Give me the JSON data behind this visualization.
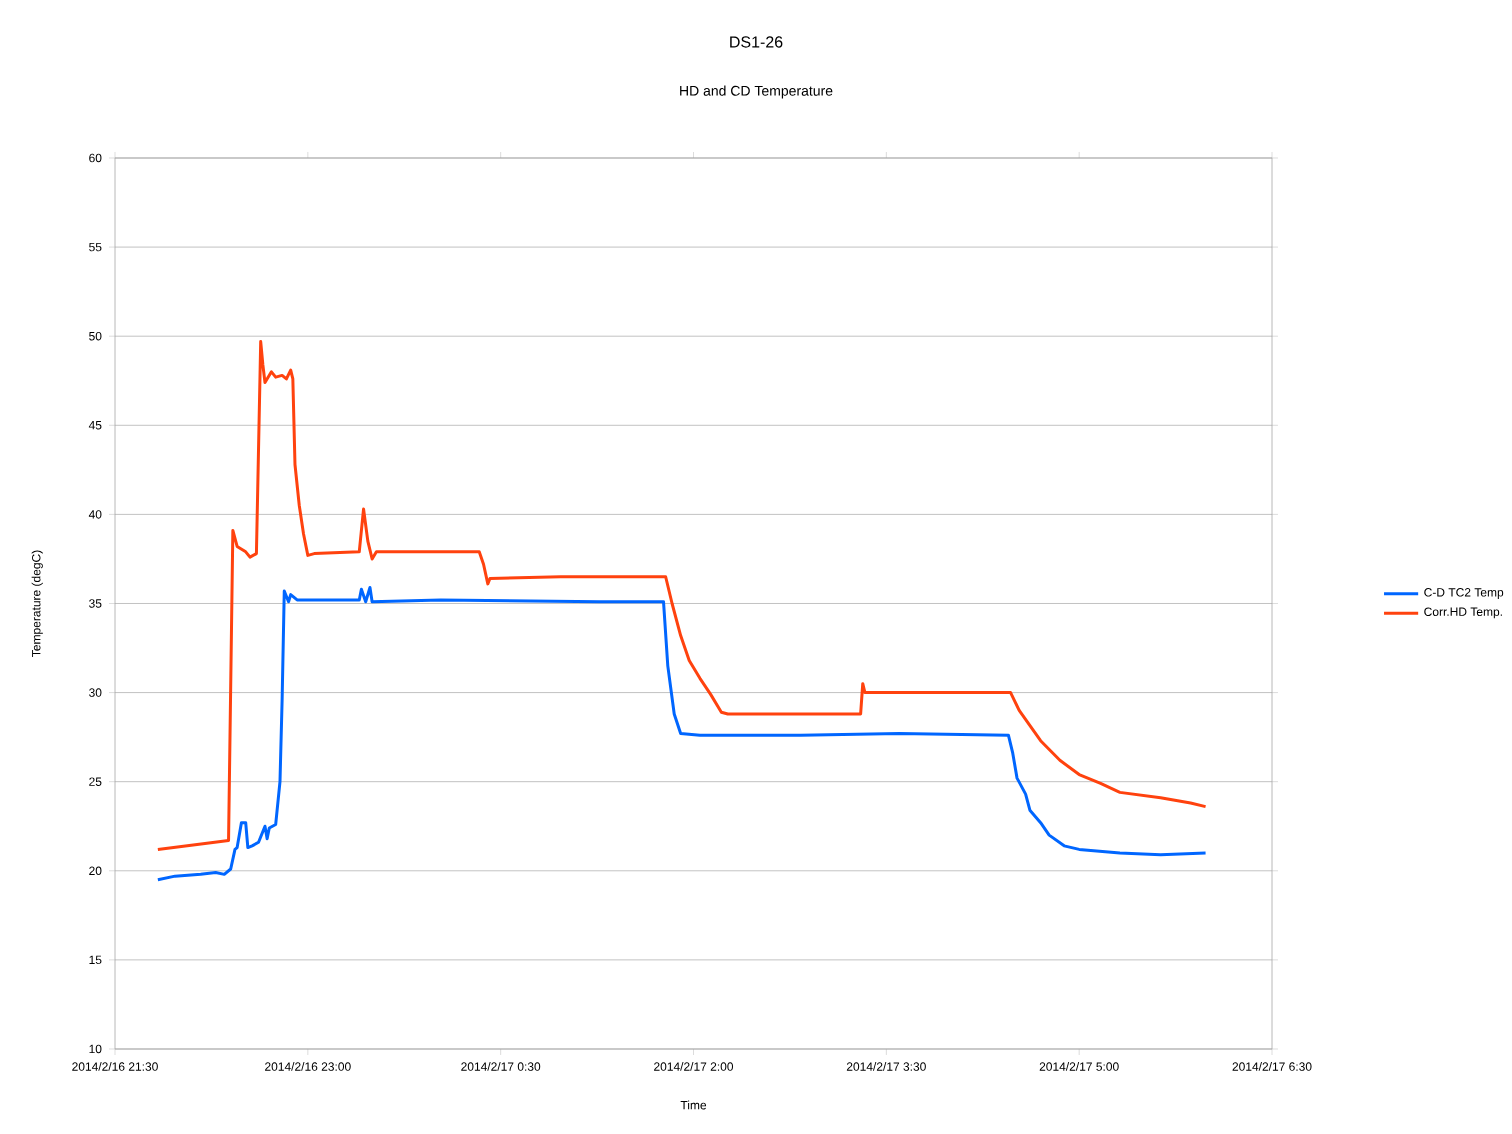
{
  "chart_data": {
    "type": "line",
    "title": "DS1-26",
    "subtitle": "HD and CD Temperature",
    "xlabel": "Time",
    "ylabel": "Temperature (degC)",
    "xlim": [
      "2014-02-16T21:30",
      "2014-02-17T06:30"
    ],
    "xticks": [
      {
        "value": "2014-02-16T21:30",
        "label": "2014/2/16 21:30"
      },
      {
        "value": "2014-02-16T23:00",
        "label": "2014/2/16 23:00"
      },
      {
        "value": "2014-02-17T00:30",
        "label": "2014/2/17 0:30"
      },
      {
        "value": "2014-02-17T02:00",
        "label": "2014/2/17 2:00"
      },
      {
        "value": "2014-02-17T03:30",
        "label": "2014/2/17 3:30"
      },
      {
        "value": "2014-02-17T05:00",
        "label": "2014/2/17 5:00"
      },
      {
        "value": "2014-02-17T06:30",
        "label": "2014/2/17 6:30"
      }
    ],
    "ylim": [
      10,
      60
    ],
    "yticks": [
      10,
      15,
      20,
      25,
      30,
      35,
      40,
      45,
      50,
      55,
      60
    ],
    "grid": "y",
    "legend": "right",
    "marker": "none",
    "line_style": "solid",
    "series": [
      {
        "name": "C-D TC2 Temp",
        "color": "#0066ff",
        "x": [
          "2014-02-16T21:50",
          "2014-02-16T21:58",
          "2014-02-16T22:10",
          "2014-02-16T22:17",
          "2014-02-16T22:21",
          "2014-02-16T22:24",
          "2014-02-16T22:26",
          "2014-02-16T22:27",
          "2014-02-16T22:29",
          "2014-02-16T22:31",
          "2014-02-16T22:32",
          "2014-02-16T22:34",
          "2014-02-16T22:37",
          "2014-02-16T22:40",
          "2014-02-16T22:41",
          "2014-02-16T22:42",
          "2014-02-16T22:45",
          "2014-02-16T22:47",
          "2014-02-16T22:48",
          "2014-02-16T22:49",
          "2014-02-16T22:51",
          "2014-02-16T22:52",
          "2014-02-16T22:55",
          "2014-02-16T23:24",
          "2014-02-16T23:25",
          "2014-02-16T23:27",
          "2014-02-16T23:29",
          "2014-02-16T23:30",
          "2014-02-17T00:02",
          "2014-02-17T01:16",
          "2014-02-17T01:46",
          "2014-02-17T01:48",
          "2014-02-17T01:51",
          "2014-02-17T01:54",
          "2014-02-17T02:03",
          "2014-02-17T02:50",
          "2014-02-17T03:36",
          "2014-02-17T04:27",
          "2014-02-17T04:29",
          "2014-02-17T04:31",
          "2014-02-17T04:35",
          "2014-02-17T04:37",
          "2014-02-17T04:42",
          "2014-02-17T04:46",
          "2014-02-17T04:53",
          "2014-02-17T05:00",
          "2014-02-17T05:19",
          "2014-02-17T05:38",
          "2014-02-17T05:59"
        ],
        "values": [
          19.5,
          19.7,
          19.8,
          19.9,
          19.8,
          20.1,
          21.2,
          21.3,
          22.7,
          22.7,
          21.3,
          21.4,
          21.6,
          22.5,
          21.8,
          22.4,
          22.6,
          25.0,
          29.6,
          35.7,
          35.1,
          35.5,
          35.2,
          35.2,
          35.8,
          35.1,
          35.9,
          35.1,
          35.2,
          35.1,
          35.1,
          31.5,
          28.8,
          27.7,
          27.6,
          27.6,
          27.7,
          27.6,
          26.6,
          25.2,
          24.3,
          23.4,
          22.7,
          22.0,
          21.4,
          21.2,
          21.0,
          20.9,
          21.0
        ]
      },
      {
        "name": "Corr.HD Temp.",
        "color": "#ff420e",
        "x": [
          "2014-02-16T21:50",
          "2014-02-16T22:23",
          "2014-02-16T22:25",
          "2014-02-16T22:27",
          "2014-02-16T22:31",
          "2014-02-16T22:33",
          "2014-02-16T22:36",
          "2014-02-16T22:38",
          "2014-02-16T22:39",
          "2014-02-16T22:40",
          "2014-02-16T22:43",
          "2014-02-16T22:45",
          "2014-02-16T22:48",
          "2014-02-16T22:50",
          "2014-02-16T22:52",
          "2014-02-16T22:53",
          "2014-02-16T22:54",
          "2014-02-16T22:56",
          "2014-02-16T22:58",
          "2014-02-16T23:00",
          "2014-02-16T23:03",
          "2014-02-16T23:24",
          "2014-02-16T23:26",
          "2014-02-16T23:28",
          "2014-02-16T23:30",
          "2014-02-16T23:32",
          "2014-02-17T00:20",
          "2014-02-17T00:22",
          "2014-02-17T00:24",
          "2014-02-17T00:25",
          "2014-02-17T00:58",
          "2014-02-17T01:47",
          "2014-02-17T01:50",
          "2014-02-17T01:54",
          "2014-02-17T01:58",
          "2014-02-17T02:03",
          "2014-02-17T02:08",
          "2014-02-17T02:13",
          "2014-02-17T02:16",
          "2014-02-17T03:18",
          "2014-02-17T03:19",
          "2014-02-17T03:20",
          "2014-02-17T04:28",
          "2014-02-17T04:32",
          "2014-02-17T04:42",
          "2014-02-17T04:51",
          "2014-02-17T05:00",
          "2014-02-17T05:10",
          "2014-02-17T05:19",
          "2014-02-17T05:38",
          "2014-02-17T05:52",
          "2014-02-17T05:59"
        ],
        "values": [
          21.2,
          21.7,
          39.1,
          38.2,
          37.9,
          37.6,
          37.8,
          49.7,
          48.4,
          47.4,
          48.0,
          47.7,
          47.8,
          47.6,
          48.1,
          47.6,
          42.8,
          40.5,
          38.9,
          37.7,
          37.8,
          37.9,
          40.3,
          38.5,
          37.5,
          37.9,
          37.9,
          37.2,
          36.1,
          36.4,
          36.5,
          36.5,
          35.0,
          33.2,
          31.8,
          30.8,
          29.9,
          28.9,
          28.8,
          28.8,
          30.5,
          30.0,
          30.0,
          29.0,
          27.3,
          26.2,
          25.4,
          24.9,
          24.4,
          24.1,
          23.8,
          23.6
        ]
      }
    ]
  }
}
